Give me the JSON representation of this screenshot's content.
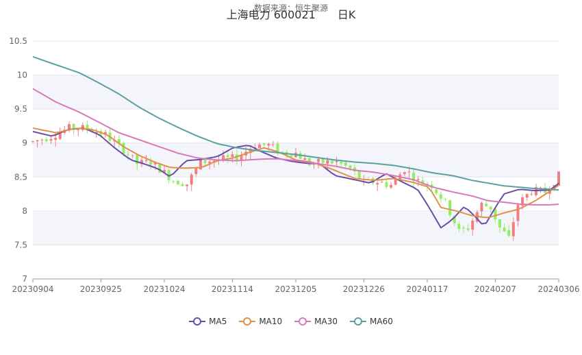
{
  "chart_data": {
    "type": "candlestick",
    "title": "上海电力 600021　　日K",
    "subtitle": "数据来源：恒生聚源",
    "ylim": [
      7,
      10.5
    ],
    "yticks": [
      "7",
      "7.5",
      "8",
      "8.5",
      "9",
      "9.5",
      "10",
      "10.5"
    ],
    "xticks": [
      "20230904",
      "20230925",
      "20231024",
      "20231114",
      "20231205",
      "20231226",
      "20240117",
      "20240207",
      "20240306"
    ],
    "xtick_index": [
      0,
      15,
      29,
      44,
      58,
      73,
      87,
      102,
      116
    ],
    "num_points": 117,
    "legend_placement": "bottom",
    "colors": {
      "up": "#f08080",
      "down": "#90ee60",
      "MA5": "#6a4ca8",
      "MA10": "#e09048",
      "MA30": "#d878b8",
      "MA60": "#5aa0a0"
    },
    "series": [
      {
        "name": "MA5",
        "anchors": [
          [
            0,
            9.17
          ],
          [
            5,
            9.1
          ],
          [
            9,
            9.2
          ],
          [
            13,
            9.22
          ],
          [
            17,
            9.12
          ],
          [
            21,
            8.92
          ],
          [
            25,
            8.75
          ],
          [
            28,
            8.7
          ],
          [
            32,
            8.62
          ],
          [
            35,
            8.5
          ],
          [
            39,
            8.74
          ],
          [
            43,
            8.76
          ],
          [
            47,
            8.8
          ],
          [
            51,
            8.93
          ],
          [
            55,
            8.97
          ],
          [
            58,
            8.88
          ],
          [
            62,
            8.78
          ],
          [
            66,
            8.73
          ],
          [
            70,
            8.7
          ],
          [
            73,
            8.7
          ],
          [
            77,
            8.52
          ],
          [
            82,
            8.46
          ],
          [
            86,
            8.41
          ],
          [
            90,
            8.55
          ],
          [
            94,
            8.43
          ],
          [
            98,
            8.32
          ],
          [
            101,
            8.05
          ],
          [
            104,
            7.75
          ],
          [
            107,
            7.88
          ],
          [
            110,
            8.07
          ],
          [
            113,
            7.9
          ],
          [
            115,
            7.77
          ],
          [
            117,
            7.97
          ],
          [
            120,
            8.25
          ],
          [
            124,
            8.32
          ],
          [
            128,
            8.3
          ],
          [
            132,
            8.31
          ],
          [
            134,
            8.41
          ]
        ]
      },
      {
        "name": "MA10",
        "anchors": [
          [
            0,
            9.22
          ],
          [
            6,
            9.15
          ],
          [
            11,
            9.22
          ],
          [
            15,
            9.2
          ],
          [
            19,
            9.12
          ],
          [
            23,
            8.95
          ],
          [
            27,
            8.82
          ],
          [
            31,
            8.72
          ],
          [
            35,
            8.64
          ],
          [
            39,
            8.63
          ],
          [
            43,
            8.64
          ],
          [
            47,
            8.74
          ],
          [
            51,
            8.78
          ],
          [
            55,
            8.86
          ],
          [
            59,
            8.93
          ],
          [
            63,
            8.86
          ],
          [
            67,
            8.75
          ],
          [
            71,
            8.72
          ],
          [
            76,
            8.62
          ],
          [
            82,
            8.48
          ],
          [
            87,
            8.45
          ],
          [
            92,
            8.48
          ],
          [
            97,
            8.42
          ],
          [
            101,
            8.35
          ],
          [
            104,
            8.05
          ],
          [
            108,
            8.0
          ],
          [
            112,
            7.93
          ],
          [
            116,
            7.9
          ],
          [
            120,
            7.97
          ],
          [
            124,
            8.03
          ],
          [
            128,
            8.15
          ],
          [
            132,
            8.3
          ],
          [
            134,
            8.38
          ]
        ]
      },
      {
        "name": "MA30",
        "anchors": [
          [
            0,
            9.8
          ],
          [
            6,
            9.6
          ],
          [
            12,
            9.45
          ],
          [
            17,
            9.3
          ],
          [
            22,
            9.15
          ],
          [
            27,
            9.05
          ],
          [
            32,
            8.95
          ],
          [
            37,
            8.85
          ],
          [
            42,
            8.78
          ],
          [
            47,
            8.75
          ],
          [
            52,
            8.74
          ],
          [
            57,
            8.76
          ],
          [
            62,
            8.77
          ],
          [
            67,
            8.74
          ],
          [
            72,
            8.7
          ],
          [
            77,
            8.66
          ],
          [
            82,
            8.6
          ],
          [
            87,
            8.57
          ],
          [
            92,
            8.52
          ],
          [
            97,
            8.46
          ],
          [
            102,
            8.35
          ],
          [
            107,
            8.28
          ],
          [
            112,
            8.22
          ],
          [
            116,
            8.15
          ],
          [
            120,
            8.13
          ],
          [
            124,
            8.1
          ],
          [
            128,
            8.09
          ],
          [
            132,
            8.09
          ],
          [
            134,
            8.1
          ]
        ]
      },
      {
        "name": "MA60",
        "anchors": [
          [
            0,
            10.27
          ],
          [
            6,
            10.15
          ],
          [
            12,
            10.03
          ],
          [
            17,
            9.88
          ],
          [
            22,
            9.72
          ],
          [
            27,
            9.53
          ],
          [
            32,
            9.37
          ],
          [
            37,
            9.23
          ],
          [
            42,
            9.1
          ],
          [
            47,
            8.99
          ],
          [
            52,
            8.93
          ],
          [
            57,
            8.89
          ],
          [
            62,
            8.86
          ],
          [
            67,
            8.83
          ],
          [
            72,
            8.79
          ],
          [
            77,
            8.75
          ],
          [
            82,
            8.72
          ],
          [
            87,
            8.7
          ],
          [
            92,
            8.67
          ],
          [
            97,
            8.62
          ],
          [
            102,
            8.56
          ],
          [
            107,
            8.52
          ],
          [
            112,
            8.45
          ],
          [
            116,
            8.41
          ],
          [
            120,
            8.37
          ],
          [
            124,
            8.35
          ],
          [
            128,
            8.33
          ],
          [
            132,
            8.32
          ],
          [
            134,
            8.31
          ]
        ]
      }
    ],
    "ohlc_anchors": [
      [
        0,
        9.02
      ],
      [
        4,
        9.1
      ],
      [
        8,
        9.22
      ],
      [
        12,
        9.22
      ],
      [
        16,
        9.12
      ],
      [
        20,
        8.9
      ],
      [
        23,
        8.7
      ],
      [
        26,
        8.72
      ],
      [
        28,
        8.62
      ],
      [
        31,
        8.45
      ],
      [
        34,
        8.4
      ],
      [
        37,
        8.72
      ],
      [
        41,
        8.76
      ],
      [
        45,
        8.78
      ],
      [
        49,
        8.98
      ],
      [
        52,
        8.97
      ],
      [
        55,
        8.86
      ],
      [
        58,
        8.85
      ],
      [
        61,
        8.7
      ],
      [
        64,
        8.72
      ],
      [
        67,
        8.72
      ],
      [
        70,
        8.62
      ],
      [
        73,
        8.42
      ],
      [
        76,
        8.43
      ],
      [
        79,
        8.38
      ],
      [
        82,
        8.62
      ],
      [
        85,
        8.44
      ],
      [
        88,
        8.38
      ],
      [
        91,
        8.12
      ],
      [
        94,
        7.7
      ],
      [
        96,
        7.75
      ],
      [
        99,
        8.1
      ],
      [
        101,
        8.05
      ],
      [
        103,
        7.75
      ],
      [
        105,
        7.6
      ],
      [
        107,
        8.1
      ],
      [
        110,
        8.3
      ],
      [
        113,
        8.28
      ],
      [
        116,
        8.52
      ]
    ]
  }
}
